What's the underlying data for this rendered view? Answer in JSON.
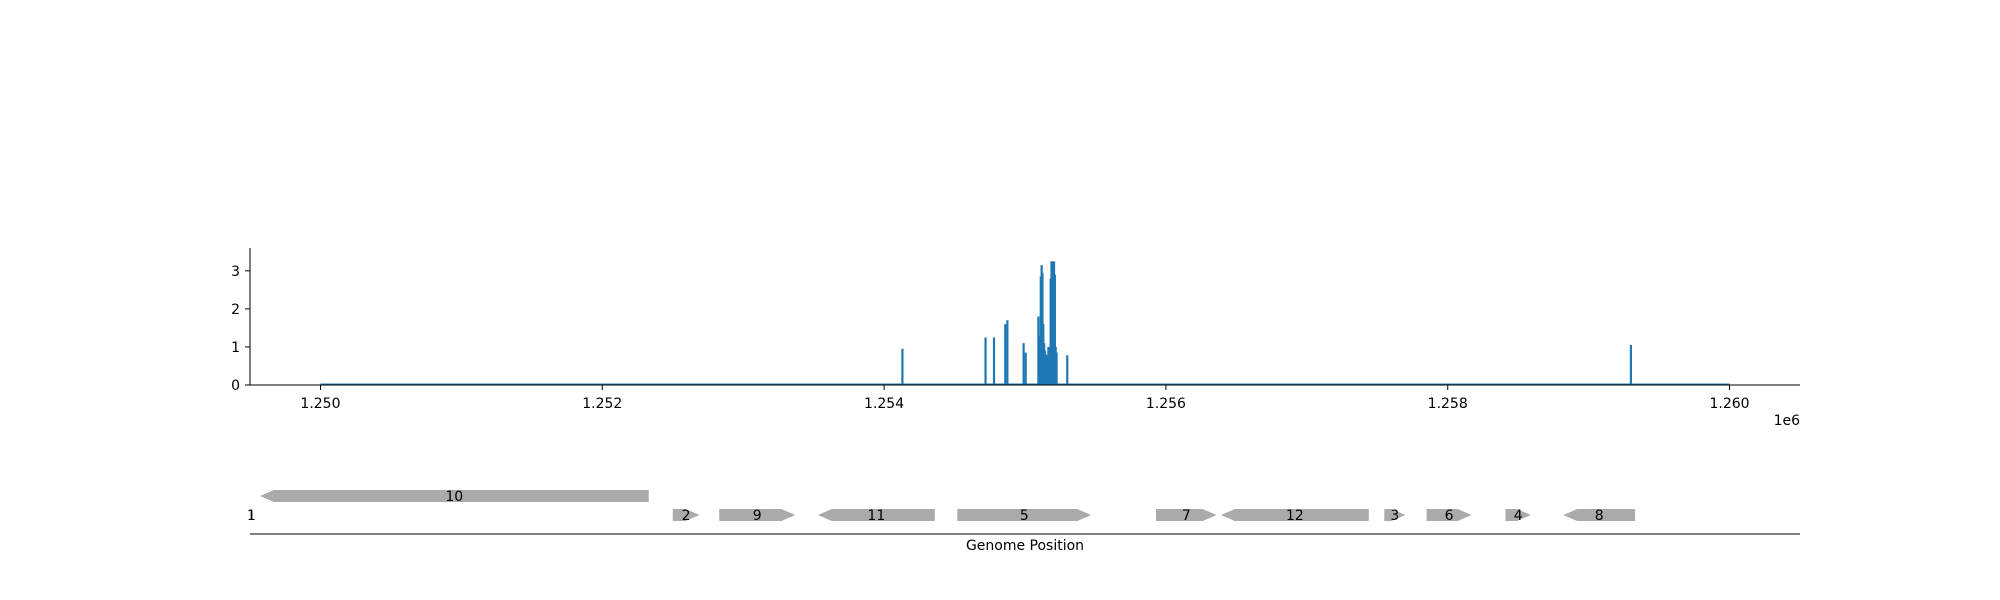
{
  "chart_data": [
    {
      "type": "line",
      "title": "",
      "xlabel": "",
      "ylabel": "",
      "xlim": [
        1249500,
        1260500
      ],
      "ylim": [
        0,
        3.6
      ],
      "x_ticks": [
        1250000,
        1252000,
        1254000,
        1256000,
        1258000,
        1260000
      ],
      "x_tick_labels": [
        "1.250",
        "1.252",
        "1.254",
        "1.256",
        "1.258",
        "1.260"
      ],
      "x_offset_label": "1e6",
      "y_ticks": [
        0,
        1,
        2,
        3
      ],
      "y_tick_labels": [
        "0",
        "1",
        "2",
        "3"
      ],
      "baseline": {
        "x_start": 1250000,
        "x_end": 1260000,
        "value": 0
      },
      "series": [
        {
          "color": "#1f77b4",
          "spikes": [
            {
              "x": 1254130,
              "y": 0.95
            },
            {
              "x": 1254720,
              "y": 1.25
            },
            {
              "x": 1254780,
              "y": 1.25
            },
            {
              "x": 1254860,
              "y": 1.6
            },
            {
              "x": 1254875,
              "y": 1.7
            },
            {
              "x": 1254990,
              "y": 1.1
            },
            {
              "x": 1255005,
              "y": 0.85
            },
            {
              "x": 1255095,
              "y": 1.8
            },
            {
              "x": 1255105,
              "y": 1.3
            },
            {
              "x": 1255112,
              "y": 2.85
            },
            {
              "x": 1255118,
              "y": 3.15
            },
            {
              "x": 1255124,
              "y": 2.95
            },
            {
              "x": 1255130,
              "y": 1.6
            },
            {
              "x": 1255136,
              "y": 1.1
            },
            {
              "x": 1255142,
              "y": 0.9
            },
            {
              "x": 1255150,
              "y": 0.75
            },
            {
              "x": 1255158,
              "y": 0.8
            },
            {
              "x": 1255166,
              "y": 1.0
            },
            {
              "x": 1255174,
              "y": 0.7
            },
            {
              "x": 1255182,
              "y": 2.8
            },
            {
              "x": 1255188,
              "y": 3.25
            },
            {
              "x": 1255194,
              "y": 3.25
            },
            {
              "x": 1255200,
              "y": 3.0
            },
            {
              "x": 1255206,
              "y": 3.25
            },
            {
              "x": 1255212,
              "y": 2.9
            },
            {
              "x": 1255218,
              "y": 1.0
            },
            {
              "x": 1255224,
              "y": 0.85
            },
            {
              "x": 1255300,
              "y": 0.78
            },
            {
              "x": 1259300,
              "y": 1.05
            }
          ]
        }
      ]
    },
    {
      "type": "gene-track",
      "xlabel": "Genome Position",
      "xlim": [
        1249500,
        1260500
      ],
      "genes": [
        {
          "label": "1",
          "start": 1249500,
          "end": 1249520,
          "strand": "+",
          "row": 1
        },
        {
          "label": "10",
          "start": 1249570,
          "end": 1252330,
          "strand": "-",
          "row": 0
        },
        {
          "label": "2",
          "start": 1252500,
          "end": 1252690,
          "strand": "+",
          "row": 1
        },
        {
          "label": "9",
          "start": 1252830,
          "end": 1253370,
          "strand": "+",
          "row": 1
        },
        {
          "label": "11",
          "start": 1253530,
          "end": 1254360,
          "strand": "-",
          "row": 1
        },
        {
          "label": "5",
          "start": 1254520,
          "end": 1255470,
          "strand": "+",
          "row": 1
        },
        {
          "label": "7",
          "start": 1255930,
          "end": 1256360,
          "strand": "+",
          "row": 1
        },
        {
          "label": "12",
          "start": 1256390,
          "end": 1257440,
          "strand": "-",
          "row": 1
        },
        {
          "label": "3",
          "start": 1257550,
          "end": 1257700,
          "strand": "+",
          "row": 1
        },
        {
          "label": "6",
          "start": 1257850,
          "end": 1258170,
          "strand": "+",
          "row": 1
        },
        {
          "label": "4",
          "start": 1258410,
          "end": 1258590,
          "strand": "+",
          "row": 1
        },
        {
          "label": "8",
          "start": 1258820,
          "end": 1259330,
          "strand": "-",
          "row": 1
        }
      ],
      "gene_color": "#aaaaaa"
    }
  ]
}
